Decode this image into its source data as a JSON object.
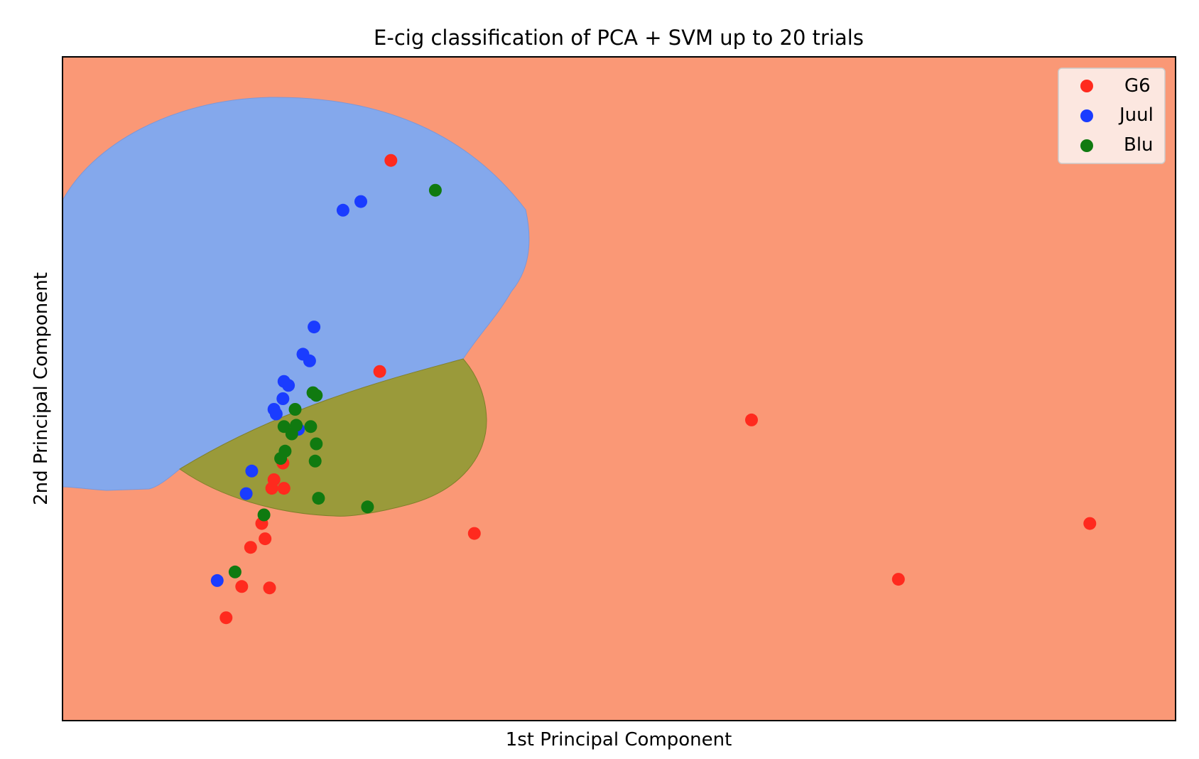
{
  "chart_data": {
    "type": "scatter",
    "title": "E-cig classification of PCA + SVM up to 20 trials",
    "xlabel": "1st Principal Component",
    "ylabel": "2nd Principal Component",
    "xlim": [
      0,
      100
    ],
    "ylim": [
      0,
      100
    ],
    "x_ticks": "none",
    "y_ticks": "none",
    "grid": false,
    "legend_position": "top-right",
    "region_colors": {
      "G6": "#fa9876",
      "Juul": "#84a8ec",
      "Blu": "#9a9a3a"
    },
    "series": [
      {
        "name": "G6",
        "color": "#ff2a1e",
        "points": [
          [
            29.5,
            84.4
          ],
          [
            28.5,
            52.6
          ],
          [
            61.9,
            45.3
          ],
          [
            37.0,
            28.2
          ],
          [
            92.3,
            29.7
          ],
          [
            75.1,
            21.3
          ],
          [
            19.8,
            38.8
          ],
          [
            19.0,
            36.3
          ],
          [
            18.8,
            35.0
          ],
          [
            19.9,
            35.0
          ],
          [
            17.9,
            29.7
          ],
          [
            18.2,
            27.4
          ],
          [
            16.9,
            26.1
          ],
          [
            16.1,
            20.2
          ],
          [
            18.6,
            20.0
          ],
          [
            14.7,
            15.5
          ]
        ]
      },
      {
        "name": "Juul",
        "color": "#1a3cff",
        "points": [
          [
            25.2,
            76.9
          ],
          [
            26.8,
            78.2
          ],
          [
            22.6,
            59.3
          ],
          [
            21.6,
            55.2
          ],
          [
            22.2,
            54.2
          ],
          [
            19.9,
            51.1
          ],
          [
            20.3,
            50.5
          ],
          [
            19.8,
            48.5
          ],
          [
            19.0,
            46.9
          ],
          [
            19.2,
            46.2
          ],
          [
            21.2,
            43.9
          ],
          [
            17.0,
            37.6
          ],
          [
            16.5,
            34.2
          ],
          [
            13.9,
            21.1
          ]
        ]
      },
      {
        "name": "Blu",
        "color": "#107a10",
        "points": [
          [
            33.5,
            79.9
          ],
          [
            22.5,
            49.4
          ],
          [
            22.8,
            49.0
          ],
          [
            20.9,
            46.9
          ],
          [
            19.9,
            44.3
          ],
          [
            21.0,
            44.5
          ],
          [
            22.3,
            44.3
          ],
          [
            20.6,
            43.2
          ],
          [
            22.8,
            41.7
          ],
          [
            20.0,
            40.6
          ],
          [
            19.6,
            39.5
          ],
          [
            22.7,
            39.1
          ],
          [
            23.0,
            33.5
          ],
          [
            27.4,
            32.2
          ],
          [
            18.1,
            31.0
          ],
          [
            15.5,
            22.4
          ]
        ]
      }
    ]
  }
}
